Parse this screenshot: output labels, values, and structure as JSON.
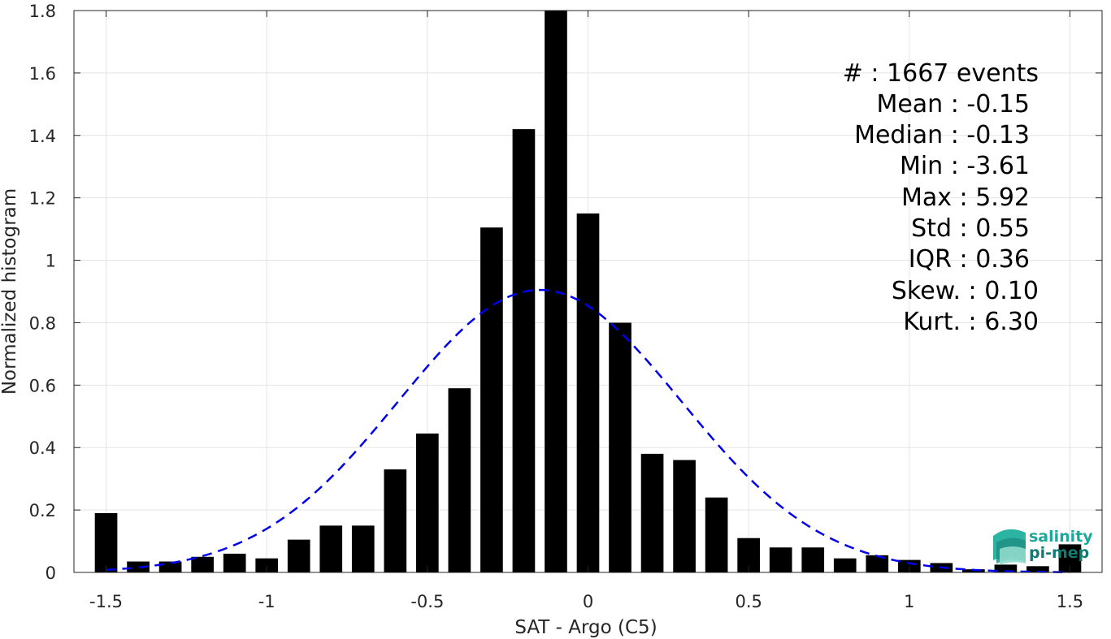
{
  "chart_data": {
    "type": "bar",
    "title": "",
    "xlabel": "SAT - Argo (C5)",
    "ylabel": "Normalized histogram",
    "xlim": [
      -1.6,
      1.6
    ],
    "ylim": [
      0,
      1.8
    ],
    "grid": true,
    "x_ticks": [
      -1.5,
      -1,
      -0.5,
      0,
      0.5,
      1,
      1.5
    ],
    "x_tick_labels": [
      "-1.5",
      "-1",
      "-0.5",
      "0",
      "0.5",
      "1",
      "1.5"
    ],
    "y_ticks": [
      0,
      0.2,
      0.4,
      0.6,
      0.8,
      1,
      1.2,
      1.4,
      1.6,
      1.8
    ],
    "y_tick_labels": [
      "0",
      "0.2",
      "0.4",
      "0.6",
      "0.8",
      "1",
      "1.2",
      "1.4",
      "1.6",
      "1.8"
    ],
    "bar_width": 0.07,
    "bar_color": "#000000",
    "bins": [
      -1.5,
      -1.4,
      -1.3,
      -1.2,
      -1.1,
      -1.0,
      -0.9,
      -0.8,
      -0.7,
      -0.6,
      -0.5,
      -0.4,
      -0.3,
      -0.2,
      -0.1,
      0.0,
      0.1,
      0.2,
      0.3,
      0.4,
      0.5,
      0.6,
      0.7,
      0.8,
      0.9,
      1.0,
      1.1,
      1.2,
      1.3,
      1.4,
      1.5
    ],
    "values": [
      0.19,
      0.035,
      0.035,
      0.05,
      0.06,
      0.045,
      0.105,
      0.15,
      0.15,
      0.33,
      0.445,
      0.59,
      1.105,
      1.42,
      1.8,
      1.15,
      0.8,
      0.38,
      0.36,
      0.24,
      0.11,
      0.08,
      0.08,
      0.045,
      0.055,
      0.04,
      0.03,
      0.01,
      0.025,
      0.02,
      0.09
    ],
    "fit": {
      "type": "gaussian",
      "mean": -0.15,
      "std": 0.44,
      "peak": 0.905,
      "color": "#0000ee",
      "style": "dashed"
    }
  },
  "stats": {
    "lines": [
      "#  : 1667 events",
      "Mean : -0.15",
      "Median : -0.13",
      "Min : -3.61",
      "Max : 5.92",
      "Std : 0.55",
      "IQR : 0.36",
      "Skew. : 0.10",
      "Kurt. : 6.30"
    ]
  },
  "logo": {
    "line1": "salinity",
    "line2": "pi-mep",
    "color1": "#1aa99a",
    "color2": "#137a72"
  }
}
